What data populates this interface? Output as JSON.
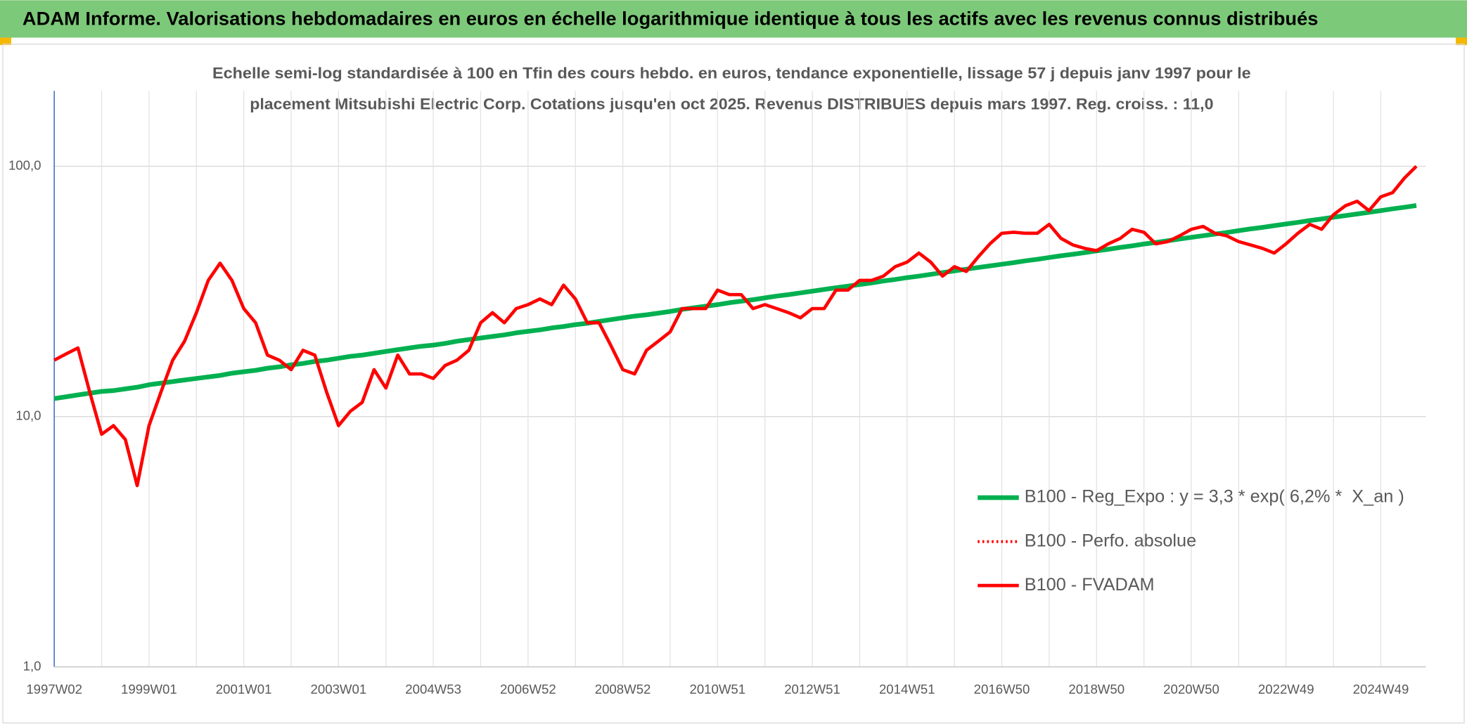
{
  "chart_data": {
    "type": "line",
    "title": "ADAM Informe. Valorisations hebdomadaires en euros en échelle logarithmique identique à tous les actifs avec les revenus connus distribués",
    "subtitle": [
      "Echelle semi-log standardisée à 100 en Tfin des cours hebdo. en euros, tendance exponentielle, lissage 57 j depuis janv 1997 pour le",
      "placement Mitsubishi Electric Corp. Cotations jusqu'en oct 2025. Revenus DISTRIBUES depuis mars 1997. Reg. croiss. : 11,0"
    ],
    "categories": [
      "1997W02",
      null,
      null,
      null,
      null,
      null,
      null,
      null,
      "1999W01",
      null,
      null,
      null,
      null,
      null,
      null,
      null,
      "2001W01",
      null,
      null,
      null,
      null,
      null,
      null,
      null,
      "2003W01",
      null,
      null,
      null,
      null,
      null,
      null,
      null,
      "2004W53",
      null,
      null,
      null,
      null,
      null,
      null,
      null,
      "2006W52",
      null,
      null,
      null,
      null,
      null,
      null,
      null,
      "2008W52",
      null,
      null,
      null,
      null,
      null,
      null,
      null,
      "2010W51",
      null,
      null,
      null,
      null,
      null,
      null,
      null,
      "2012W51",
      null,
      null,
      null,
      null,
      null,
      null,
      null,
      "2014W51",
      null,
      null,
      null,
      null,
      null,
      null,
      null,
      "2016W50",
      null,
      null,
      null,
      null,
      null,
      null,
      null,
      "2018W50",
      null,
      null,
      null,
      null,
      null,
      null,
      null,
      "2020W50",
      null,
      null,
      null,
      null,
      null,
      null,
      null,
      "2022W49",
      null,
      null,
      null,
      null,
      null,
      null,
      null,
      "2024W49",
      null,
      null,
      null
    ],
    "series": [
      {
        "name": "B100 - Reg_Expo : y = 3,3 * exp( 6,2% *  X_an )",
        "color": "#00b050",
        "style": "solid",
        "values": [
          11.8,
          12.0,
          12.2,
          12.4,
          12.6,
          12.7,
          12.9,
          13.1,
          13.4,
          13.6,
          13.8,
          14.0,
          14.2,
          14.4,
          14.6,
          14.9,
          15.1,
          15.3,
          15.6,
          15.8,
          16.1,
          16.3,
          16.6,
          16.8,
          17.1,
          17.4,
          17.6,
          17.9,
          18.2,
          18.5,
          18.8,
          19.1,
          19.3,
          19.6,
          20.0,
          20.3,
          20.6,
          20.9,
          21.2,
          21.6,
          21.9,
          22.2,
          22.6,
          22.9,
          23.3,
          23.6,
          24.0,
          24.4,
          24.8,
          25.2,
          25.5,
          25.9,
          26.3,
          26.8,
          27.2,
          27.6,
          28.0,
          28.5,
          28.9,
          29.3,
          29.8,
          30.3,
          30.7,
          31.2,
          31.7,
          32.2,
          32.7,
          33.2,
          33.7,
          34.2,
          34.8,
          35.3,
          35.9,
          36.4,
          37.0,
          37.6,
          38.2,
          38.8,
          39.4,
          40.0,
          40.6,
          41.2,
          41.9,
          42.5,
          43.2,
          43.9,
          44.5,
          45.2,
          45.9,
          46.6,
          47.4,
          48.1,
          48.9,
          49.6,
          50.4,
          51.2,
          52.0,
          52.8,
          53.6,
          54.4,
          55.3,
          56.2,
          57.0,
          57.9,
          58.8,
          59.7,
          60.7,
          61.6,
          62.6,
          63.5,
          64.5,
          65.5,
          66.5,
          67.6,
          68.6,
          69.7
        ]
      },
      {
        "name": "B100 - Perfo. absolue",
        "color": "#ff0000",
        "style": "dotted",
        "values": [
          null,
          null,
          null,
          null,
          null,
          null,
          null,
          null,
          null,
          null,
          null,
          null,
          null,
          null,
          null,
          null,
          null,
          null,
          null,
          null,
          null,
          null,
          null,
          null,
          null,
          null,
          null,
          null,
          null,
          null,
          null,
          null,
          null,
          null,
          null,
          null,
          null,
          null,
          null,
          null,
          null,
          null,
          null,
          null,
          null,
          null,
          null,
          null,
          null,
          null,
          null,
          null,
          null,
          null,
          null,
          null,
          null,
          null,
          null,
          null,
          null,
          null,
          null,
          null,
          null,
          null,
          null,
          null,
          null,
          null,
          null,
          null,
          null,
          null,
          null,
          null,
          null,
          null,
          null,
          null,
          null,
          null,
          null,
          null,
          null,
          null,
          null,
          null,
          null,
          null,
          null,
          null,
          null,
          null,
          null,
          null,
          null,
          null,
          null,
          null,
          null,
          null,
          null,
          null,
          null,
          null,
          null,
          null,
          null,
          null,
          null,
          null,
          null,
          null,
          null,
          null
        ]
      },
      {
        "name": "B100 - FVADAM",
        "color": "#ff0000",
        "style": "solid",
        "values": [
          16.8,
          17.8,
          18.8,
          12.5,
          8.5,
          9.2,
          8.1,
          5.3,
          9.2,
          12.5,
          16.8,
          20,
          26,
          35,
          41,
          35,
          27,
          23.7,
          17.6,
          16.8,
          15.4,
          18.4,
          17.6,
          12.5,
          9.2,
          10.5,
          11.4,
          15.4,
          13,
          17.6,
          14.8,
          14.8,
          14.2,
          16,
          16.8,
          18.4,
          23.7,
          26,
          23.7,
          27,
          28,
          29.5,
          28,
          33.5,
          29.5,
          23.7,
          23.7,
          19.2,
          15.4,
          14.8,
          18.4,
          20,
          21.8,
          27,
          27,
          27,
          32,
          30.7,
          30.7,
          27,
          28,
          27,
          26,
          24.8,
          27,
          27,
          32,
          32,
          35,
          35,
          36.4,
          39.7,
          41.4,
          45,
          41.4,
          36.4,
          39.7,
          38,
          43.4,
          49,
          54,
          54.5,
          54,
          54,
          58.6,
          51.5,
          48.5,
          47,
          46,
          49,
          51.5,
          56,
          54.5,
          49,
          50,
          52.7,
          56,
          57.5,
          54,
          52.7,
          50,
          48.5,
          47,
          45,
          49,
          54,
          58.6,
          56,
          64,
          69.5,
          72.5,
          66.5,
          75.5,
          78.5,
          89.8,
          100
        ]
      }
    ],
    "ylim": [
      1,
      200
    ],
    "yticks": [
      {
        "value": 1,
        "label": "1,0"
      },
      {
        "value": 10,
        "label": "10,0"
      },
      {
        "value": 100,
        "label": "100,0"
      }
    ],
    "log_scale": true,
    "grid": true,
    "legend_position": "lower right"
  }
}
